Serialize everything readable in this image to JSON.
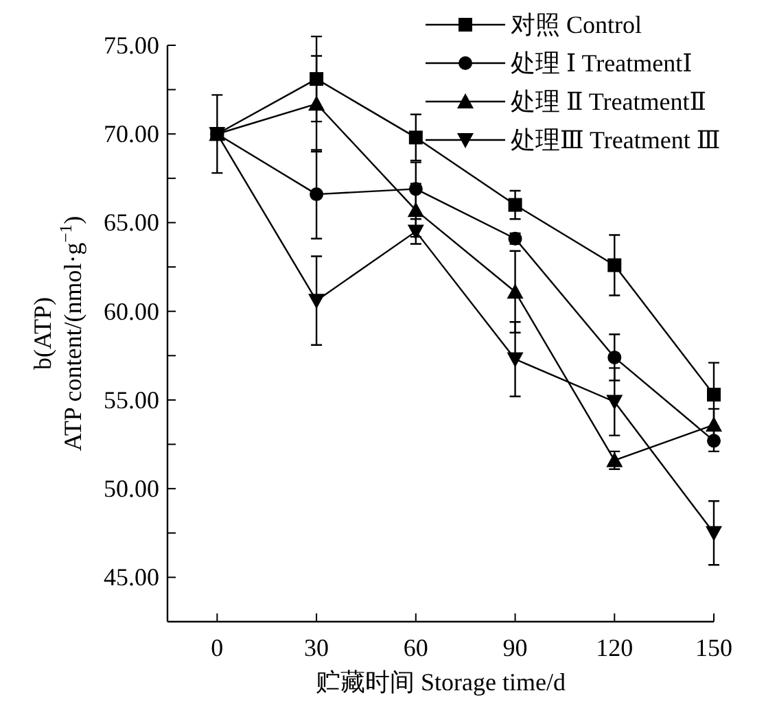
{
  "chart_data": {
    "type": "line",
    "xlabel": "贮藏时间 Storage time/d",
    "ylabel": "b(ATP)\nATP content/(nmol·g$^{−1}$)",
    "x": [
      0,
      30,
      60,
      90,
      120,
      150
    ],
    "xlim": [
      -15,
      150
    ],
    "xticks": [
      0,
      30,
      60,
      90,
      120,
      150
    ],
    "ylim": [
      42.5,
      75
    ],
    "yticks": [
      {
        "value": 45,
        "label": "45.00"
      },
      {
        "value": 47.5,
        "label": null
      },
      {
        "value": 50,
        "label": "50.00"
      },
      {
        "value": 52.5,
        "label": null
      },
      {
        "value": 55,
        "label": "55.00"
      },
      {
        "value": 57.5,
        "label": null
      },
      {
        "value": 60,
        "label": "60.00"
      },
      {
        "value": 62.5,
        "label": null
      },
      {
        "value": 65,
        "label": "65.00"
      },
      {
        "value": 67.5,
        "label": null
      },
      {
        "value": 70,
        "label": "70.00"
      },
      {
        "value": 72.5,
        "label": null
      },
      {
        "value": 75,
        "label": "75.00"
      }
    ],
    "grid": false,
    "legend": "top right",
    "line_style": "solid",
    "series": [
      {
        "name": "对照 Control",
        "color": "#000000",
        "marker": "square",
        "values": [
          70.0,
          73.1,
          69.8,
          66.0,
          62.6,
          55.3
        ],
        "errors": [
          2.2,
          2.4,
          1.3,
          0.8,
          1.7,
          1.8
        ]
      },
      {
        "name": "处理 Ⅰ TreatmentⅠ",
        "color": "#000000",
        "marker": "circle",
        "values": [
          70.0,
          66.6,
          66.9,
          64.1,
          57.4,
          52.7
        ],
        "errors": [
          null,
          2.5,
          1.5,
          0.3,
          1.3,
          0.6
        ]
      },
      {
        "name": "处理 Ⅱ TreatmentⅡ",
        "color": "#000000",
        "marker": "triangle",
        "values": [
          70.0,
          71.7,
          65.7,
          61.1,
          51.6,
          53.6
        ],
        "errors": [
          null,
          2.7,
          1.5,
          2.3,
          0.5,
          0.9
        ]
      },
      {
        "name": "处理Ⅲ Treatment Ⅲ",
        "color": "#000000",
        "marker": "triangle-down",
        "values": [
          70.0,
          60.6,
          64.5,
          57.3,
          54.9,
          47.5
        ],
        "errors": [
          null,
          2.5,
          0.7,
          2.1,
          1.9,
          1.8
        ]
      }
    ]
  }
}
